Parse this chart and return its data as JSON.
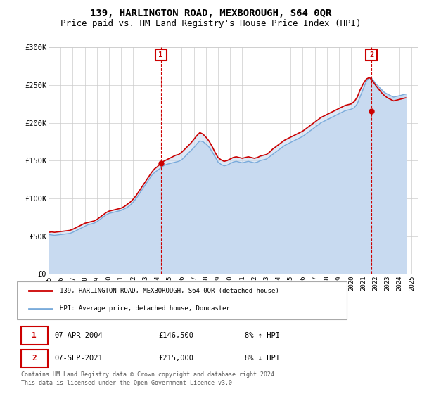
{
  "title": "139, HARLINGTON ROAD, MEXBOROUGH, S64 0QR",
  "subtitle": "Price paid vs. HM Land Registry's House Price Index (HPI)",
  "title_fontsize": 10,
  "subtitle_fontsize": 9,
  "background_color": "#ffffff",
  "plot_bg_color": "#ffffff",
  "grid_color": "#cccccc",
  "ylim": [
    0,
    300000
  ],
  "xlim": [
    1995.0,
    2025.5
  ],
  "yticks": [
    0,
    50000,
    100000,
    150000,
    200000,
    250000,
    300000
  ],
  "ytick_labels": [
    "£0",
    "£50K",
    "£100K",
    "£150K",
    "£200K",
    "£250K",
    "£300K"
  ],
  "xticks": [
    1995,
    1996,
    1997,
    1998,
    1999,
    2000,
    2001,
    2002,
    2003,
    2004,
    2005,
    2006,
    2007,
    2008,
    2009,
    2010,
    2011,
    2012,
    2013,
    2014,
    2015,
    2016,
    2017,
    2018,
    2019,
    2020,
    2021,
    2022,
    2023,
    2024,
    2025
  ],
  "red_line_color": "#cc0000",
  "blue_line_color": "#7aabdb",
  "blue_fill_color": "#c8daf0",
  "transaction1_x": 2004.27,
  "transaction1_y": 146500,
  "transaction2_x": 2021.68,
  "transaction2_y": 215000,
  "vline_color": "#cc0000",
  "marker_box_color": "#cc0000",
  "legend_label_red": "139, HARLINGTON ROAD, MEXBOROUGH, S64 0QR (detached house)",
  "legend_label_blue": "HPI: Average price, detached house, Doncaster",
  "table_rows": [
    {
      "num": "1",
      "date": "07-APR-2004",
      "price": "£146,500",
      "hpi": "8% ↑ HPI"
    },
    {
      "num": "2",
      "date": "07-SEP-2021",
      "price": "£215,000",
      "hpi": "8% ↓ HPI"
    }
  ],
  "footer": "Contains HM Land Registry data © Crown copyright and database right 2024.\nThis data is licensed under the Open Government Licence v3.0.",
  "hpi_data_x": [
    1995.0,
    1995.25,
    1995.5,
    1995.75,
    1996.0,
    1996.25,
    1996.5,
    1996.75,
    1997.0,
    1997.25,
    1997.5,
    1997.75,
    1998.0,
    1998.25,
    1998.5,
    1998.75,
    1999.0,
    1999.25,
    1999.5,
    1999.75,
    2000.0,
    2000.25,
    2000.5,
    2000.75,
    2001.0,
    2001.25,
    2001.5,
    2001.75,
    2002.0,
    2002.25,
    2002.5,
    2002.75,
    2003.0,
    2003.25,
    2003.5,
    2003.75,
    2004.0,
    2004.25,
    2004.5,
    2004.75,
    2005.0,
    2005.25,
    2005.5,
    2005.75,
    2006.0,
    2006.25,
    2006.5,
    2006.75,
    2007.0,
    2007.25,
    2007.5,
    2007.75,
    2008.0,
    2008.25,
    2008.5,
    2008.75,
    2009.0,
    2009.25,
    2009.5,
    2009.75,
    2010.0,
    2010.25,
    2010.5,
    2010.75,
    2011.0,
    2011.25,
    2011.5,
    2011.75,
    2012.0,
    2012.25,
    2012.5,
    2012.75,
    2013.0,
    2013.25,
    2013.5,
    2013.75,
    2014.0,
    2014.25,
    2014.5,
    2014.75,
    2015.0,
    2015.25,
    2015.5,
    2015.75,
    2016.0,
    2016.25,
    2016.5,
    2016.75,
    2017.0,
    2017.25,
    2017.5,
    2017.75,
    2018.0,
    2018.25,
    2018.5,
    2018.75,
    2019.0,
    2019.25,
    2019.5,
    2019.75,
    2020.0,
    2020.25,
    2020.5,
    2020.75,
    2021.0,
    2021.25,
    2021.5,
    2021.75,
    2022.0,
    2022.25,
    2022.5,
    2022.75,
    2023.0,
    2023.25,
    2023.5,
    2023.75,
    2024.0,
    2024.25,
    2024.5
  ],
  "hpi_data_y": [
    52000,
    51500,
    51000,
    51500,
    52000,
    52500,
    53000,
    53500,
    55000,
    57000,
    59000,
    61000,
    63000,
    65000,
    66000,
    67000,
    69000,
    72000,
    75000,
    78000,
    80000,
    81000,
    82000,
    83000,
    84000,
    86000,
    88000,
    91000,
    95000,
    100000,
    106000,
    112000,
    118000,
    124000,
    130000,
    134000,
    137000,
    140000,
    143000,
    145000,
    146000,
    147000,
    148000,
    149000,
    151000,
    155000,
    159000,
    163000,
    167000,
    172000,
    176000,
    175000,
    172000,
    168000,
    162000,
    155000,
    148000,
    145000,
    143000,
    144000,
    146000,
    148000,
    149000,
    148000,
    147000,
    148000,
    149000,
    148000,
    147000,
    148000,
    150000,
    151000,
    152000,
    155000,
    158000,
    161000,
    164000,
    167000,
    170000,
    172000,
    174000,
    176000,
    178000,
    180000,
    182000,
    185000,
    188000,
    191000,
    194000,
    197000,
    200000,
    202000,
    204000,
    206000,
    208000,
    210000,
    212000,
    214000,
    216000,
    217000,
    218000,
    220000,
    225000,
    235000,
    245000,
    255000,
    260000,
    258000,
    252000,
    248000,
    244000,
    240000,
    238000,
    236000,
    234000,
    235000,
    236000,
    237000,
    238000
  ],
  "red_data_x": [
    1995.0,
    1995.25,
    1995.5,
    1995.75,
    1996.0,
    1996.25,
    1996.5,
    1996.75,
    1997.0,
    1997.25,
    1997.5,
    1997.75,
    1998.0,
    1998.25,
    1998.5,
    1998.75,
    1999.0,
    1999.25,
    1999.5,
    1999.75,
    2000.0,
    2000.25,
    2000.5,
    2000.75,
    2001.0,
    2001.25,
    2001.5,
    2001.75,
    2002.0,
    2002.25,
    2002.5,
    2002.75,
    2003.0,
    2003.25,
    2003.5,
    2003.75,
    2004.0,
    2004.25,
    2004.5,
    2004.75,
    2005.0,
    2005.25,
    2005.5,
    2005.75,
    2006.0,
    2006.25,
    2006.5,
    2006.75,
    2007.0,
    2007.25,
    2007.5,
    2007.75,
    2008.0,
    2008.25,
    2008.5,
    2008.75,
    2009.0,
    2009.25,
    2009.5,
    2009.75,
    2010.0,
    2010.25,
    2010.5,
    2010.75,
    2011.0,
    2011.25,
    2011.5,
    2011.75,
    2012.0,
    2012.25,
    2012.5,
    2012.75,
    2013.0,
    2013.25,
    2013.5,
    2013.75,
    2014.0,
    2014.25,
    2014.5,
    2014.75,
    2015.0,
    2015.25,
    2015.5,
    2015.75,
    2016.0,
    2016.25,
    2016.5,
    2016.75,
    2017.0,
    2017.25,
    2017.5,
    2017.75,
    2018.0,
    2018.25,
    2018.5,
    2018.75,
    2019.0,
    2019.25,
    2019.5,
    2019.75,
    2020.0,
    2020.25,
    2020.5,
    2020.75,
    2021.0,
    2021.25,
    2021.5,
    2021.75,
    2022.0,
    2022.25,
    2022.5,
    2022.75,
    2023.0,
    2023.25,
    2023.5,
    2023.75,
    2024.0,
    2024.25,
    2024.5
  ],
  "red_data_y": [
    55000,
    55500,
    55000,
    55500,
    56000,
    56500,
    57000,
    57500,
    59000,
    61000,
    63000,
    65000,
    67000,
    68000,
    69000,
    70000,
    72000,
    75000,
    78000,
    81000,
    83000,
    84000,
    85000,
    86000,
    87000,
    89000,
    92000,
    95000,
    99000,
    104000,
    110000,
    116000,
    122000,
    128000,
    134000,
    139000,
    142000,
    146500,
    149000,
    151000,
    153000,
    155000,
    157000,
    158000,
    161000,
    165000,
    169000,
    173000,
    178000,
    183000,
    187000,
    185000,
    181000,
    176000,
    169000,
    161000,
    154000,
    151000,
    149000,
    150000,
    152000,
    154000,
    155000,
    154000,
    153000,
    154000,
    155000,
    154000,
    153000,
    154000,
    156000,
    157000,
    158000,
    161000,
    165000,
    168000,
    171000,
    174000,
    177000,
    179000,
    181000,
    183000,
    185000,
    187000,
    189000,
    192000,
    195000,
    198000,
    201000,
    204000,
    207000,
    209000,
    211000,
    213000,
    215000,
    217000,
    219000,
    221000,
    223000,
    224000,
    225000,
    228000,
    234000,
    244000,
    252000,
    258000,
    260000,
    256000,
    250000,
    245000,
    240000,
    236000,
    233000,
    231000,
    229000,
    230000,
    231000,
    232000,
    233000
  ]
}
